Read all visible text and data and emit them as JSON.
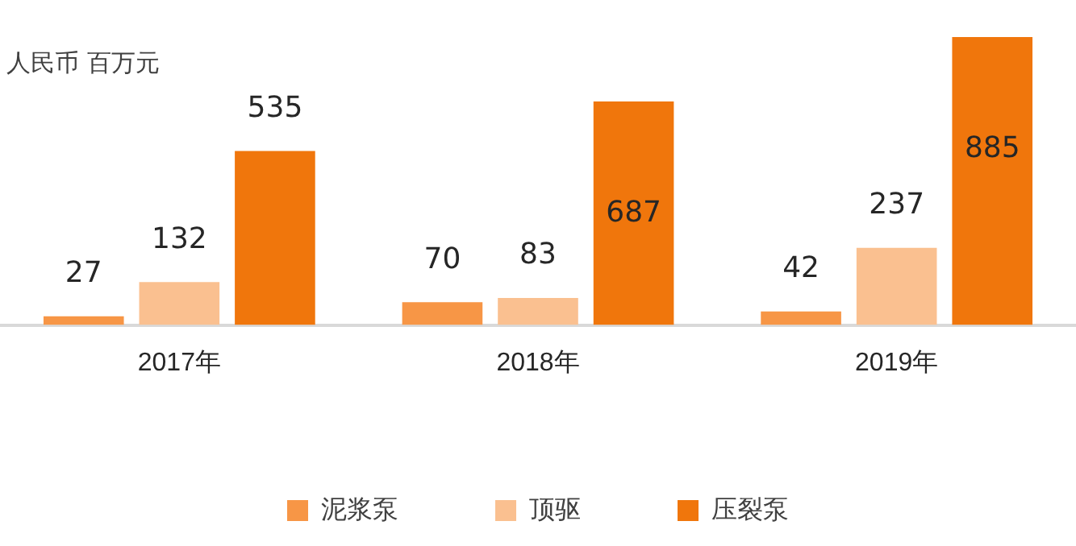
{
  "chart_data": {
    "type": "bar",
    "ylabel": "人民币 百万元",
    "categories": [
      "2017年",
      "2018年",
      "2019年"
    ],
    "series": [
      {
        "name": "泥浆泵",
        "color": "#f79646",
        "values": [
          27,
          70,
          42
        ]
      },
      {
        "name": "顶驱",
        "color": "#fac090",
        "values": [
          132,
          83,
          237
        ]
      },
      {
        "name": "压裂泵",
        "color": "#f0760c",
        "values": [
          535,
          687,
          885
        ]
      }
    ],
    "data_labels": true,
    "legend": "bottom",
    "grid": false
  }
}
